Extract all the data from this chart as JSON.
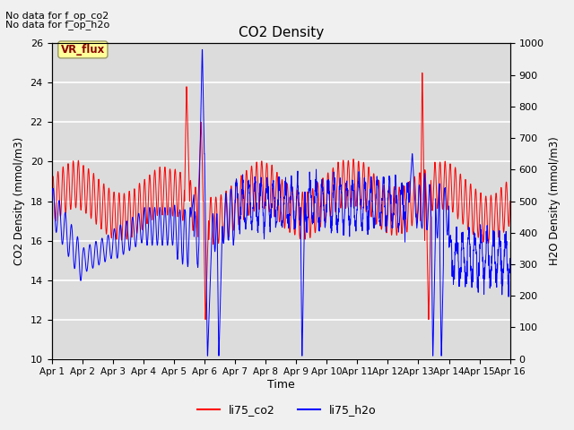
{
  "title": "CO2 Density",
  "xlabel": "Time",
  "ylabel_left": "CO2 Density (mmol/m3)",
  "ylabel_right": "H2O Density (mmol/m3)",
  "ylim_left": [
    10,
    26
  ],
  "ylim_right": [
    0,
    1000
  ],
  "yticks_left": [
    10,
    12,
    14,
    16,
    18,
    20,
    22,
    24,
    26
  ],
  "yticks_right": [
    0,
    100,
    200,
    300,
    400,
    500,
    600,
    700,
    800,
    900,
    1000
  ],
  "xtick_labels": [
    "Apr 1",
    "Apr 2",
    "Apr 3",
    "Apr 4",
    "Apr 5",
    "Apr 6",
    "Apr 7",
    "Apr 8",
    "Apr 9",
    "Apr 10",
    "Apr 11",
    "Apr 12",
    "Apr 13",
    "Apr 14",
    "Apr 15",
    "Apr 16"
  ],
  "no_data_text1": "No data for f_op_co2",
  "no_data_text2": "No data for f_op_h2o",
  "vr_flux_label": "VR_flux",
  "legend_labels": [
    "li75_co2",
    "li75_h2o"
  ],
  "line_colors": [
    "red",
    "blue"
  ],
  "bg_color": "#dcdcdc",
  "fig_color": "#f0f0f0"
}
